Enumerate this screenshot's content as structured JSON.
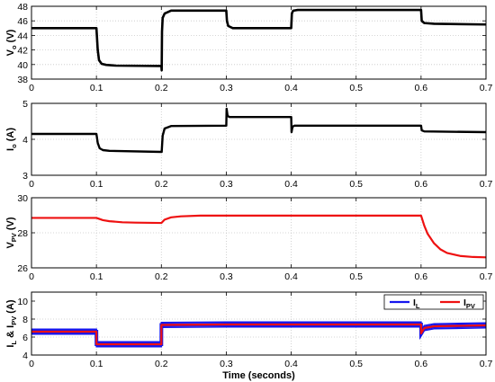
{
  "chart_data": [
    {
      "type": "line",
      "ylabel": "V",
      "ylabel_sub": "o",
      "ylabel_unit": " (V)",
      "xlim": [
        0,
        0.7
      ],
      "ylim": [
        38,
        48
      ],
      "yticks": [
        38,
        40,
        42,
        44,
        46,
        48
      ],
      "xticks": [
        0,
        0.1,
        0.2,
        0.3,
        0.4,
        0.5,
        0.6,
        0.7
      ],
      "grid": true,
      "series": [
        {
          "color": "#000000",
          "x": [
            0,
            0.1,
            0.102,
            0.104,
            0.108,
            0.115,
            0.13,
            0.2,
            0.2005,
            0.201,
            0.202,
            0.205,
            0.215,
            0.3,
            0.301,
            0.303,
            0.31,
            0.4,
            0.401,
            0.403,
            0.41,
            0.6,
            0.601,
            0.605,
            0.62,
            0.7
          ],
          "y": [
            45.0,
            45.0,
            42.0,
            40.6,
            40.1,
            39.95,
            39.85,
            39.8,
            39.2,
            44.5,
            46.4,
            47.0,
            47.4,
            47.4,
            46.0,
            45.3,
            45.0,
            45.0,
            47.0,
            47.4,
            47.5,
            47.5,
            46.0,
            45.7,
            45.6,
            45.5
          ]
        }
      ]
    },
    {
      "type": "line",
      "ylabel": "I",
      "ylabel_sub": "o",
      "ylabel_unit": " (A)",
      "xlim": [
        0,
        0.7
      ],
      "ylim": [
        3,
        5
      ],
      "yticks": [
        3,
        4,
        5
      ],
      "xticks": [
        0,
        0.1,
        0.2,
        0.3,
        0.4,
        0.5,
        0.6,
        0.7
      ],
      "grid": true,
      "series": [
        {
          "color": "#000000",
          "x": [
            0,
            0.1,
            0.102,
            0.105,
            0.11,
            0.12,
            0.2,
            0.2005,
            0.202,
            0.205,
            0.215,
            0.3,
            0.3005,
            0.302,
            0.305,
            0.31,
            0.4,
            0.4005,
            0.402,
            0.405,
            0.6,
            0.601,
            0.605,
            0.7
          ],
          "y": [
            4.15,
            4.15,
            3.9,
            3.75,
            3.7,
            3.68,
            3.65,
            3.65,
            4.1,
            4.3,
            4.37,
            4.38,
            4.85,
            4.65,
            4.62,
            4.62,
            4.62,
            4.2,
            4.35,
            4.38,
            4.38,
            4.25,
            4.22,
            4.2
          ]
        }
      ]
    },
    {
      "type": "line",
      "ylabel": "V",
      "ylabel_sub": "PV",
      "ylabel_unit": " (V)",
      "xlim": [
        0,
        0.7
      ],
      "ylim": [
        26,
        30
      ],
      "yticks": [
        26,
        28,
        30
      ],
      "xticks": [
        0,
        0.1,
        0.2,
        0.3,
        0.4,
        0.5,
        0.6,
        0.7
      ],
      "grid": true,
      "series": [
        {
          "color": "#ee1111",
          "x": [
            0,
            0.1,
            0.11,
            0.12,
            0.14,
            0.16,
            0.2,
            0.205,
            0.215,
            0.23,
            0.26,
            0.3,
            0.6,
            0.605,
            0.61,
            0.62,
            0.63,
            0.64,
            0.66,
            0.68,
            0.7
          ],
          "y": [
            28.85,
            28.85,
            28.72,
            28.66,
            28.6,
            28.58,
            28.56,
            28.75,
            28.88,
            28.94,
            28.98,
            28.98,
            28.98,
            28.4,
            27.95,
            27.4,
            27.05,
            26.85,
            26.68,
            26.62,
            26.6
          ]
        }
      ]
    },
    {
      "type": "line",
      "ylabel": "I",
      "ylabel_sub": "L",
      "ylabel_mid": " & I",
      "ylabel_sub2": "PV",
      "ylabel_unit": " (A)",
      "xlabel": "Time (seconds)",
      "xlim": [
        0,
        0.7
      ],
      "ylim": [
        4,
        11
      ],
      "yticks": [
        4,
        6,
        8,
        10
      ],
      "xticks": [
        0,
        0.1,
        0.2,
        0.3,
        0.4,
        0.5,
        0.6,
        0.7
      ],
      "grid": true,
      "legend_position": "top-right",
      "series": [
        {
          "name": "I_L",
          "legend_main": "I",
          "legend_sub": "L",
          "color": "#1515ee",
          "ripple": 0.55,
          "x": [
            0,
            0.1,
            0.1001,
            0.2,
            0.2001,
            0.3,
            0.6,
            0.6001,
            0.605,
            0.62,
            0.7
          ],
          "y": [
            6.6,
            6.6,
            5.2,
            5.2,
            7.35,
            7.4,
            7.4,
            6.4,
            7.0,
            7.2,
            7.3
          ]
        },
        {
          "name": "I_PV",
          "legend_main": "I",
          "legend_sub": "PV",
          "color": "#ee1111",
          "ripple": 0,
          "x": [
            0,
            0.1,
            0.1001,
            0.2,
            0.2001,
            0.3,
            0.6,
            0.6001,
            0.605,
            0.62,
            0.7
          ],
          "y": [
            6.6,
            6.6,
            5.2,
            5.2,
            7.35,
            7.4,
            7.4,
            6.4,
            7.0,
            7.2,
            7.3
          ]
        }
      ]
    }
  ]
}
